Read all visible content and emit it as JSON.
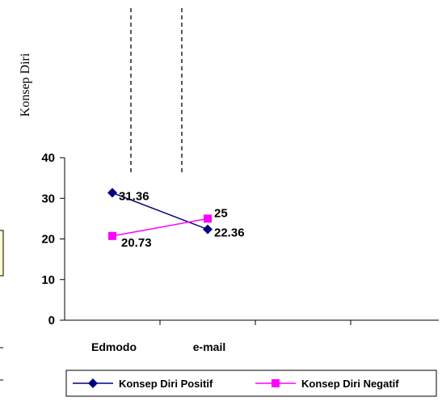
{
  "chart_data": {
    "type": "line",
    "ylabel": "Konsep Diri",
    "categories": [
      "Edmodo",
      "e-mail"
    ],
    "ylim": [
      0,
      40
    ],
    "yticks": [
      "0",
      "10",
      "20",
      "30",
      "40"
    ],
    "grid": false,
    "legend": "bottom",
    "series": [
      {
        "name": "Konsep Diri Positif",
        "values": [
          31.36,
          22.36
        ],
        "labels": [
          "31.36",
          "22.36"
        ],
        "color": "#000080",
        "marker": "diamond"
      },
      {
        "name": "Konsep Diri Negatif",
        "values": [
          20.73,
          25
        ],
        "labels": [
          "20.73",
          "25"
        ],
        "color": "#ff00ff",
        "marker": "square"
      }
    ]
  }
}
